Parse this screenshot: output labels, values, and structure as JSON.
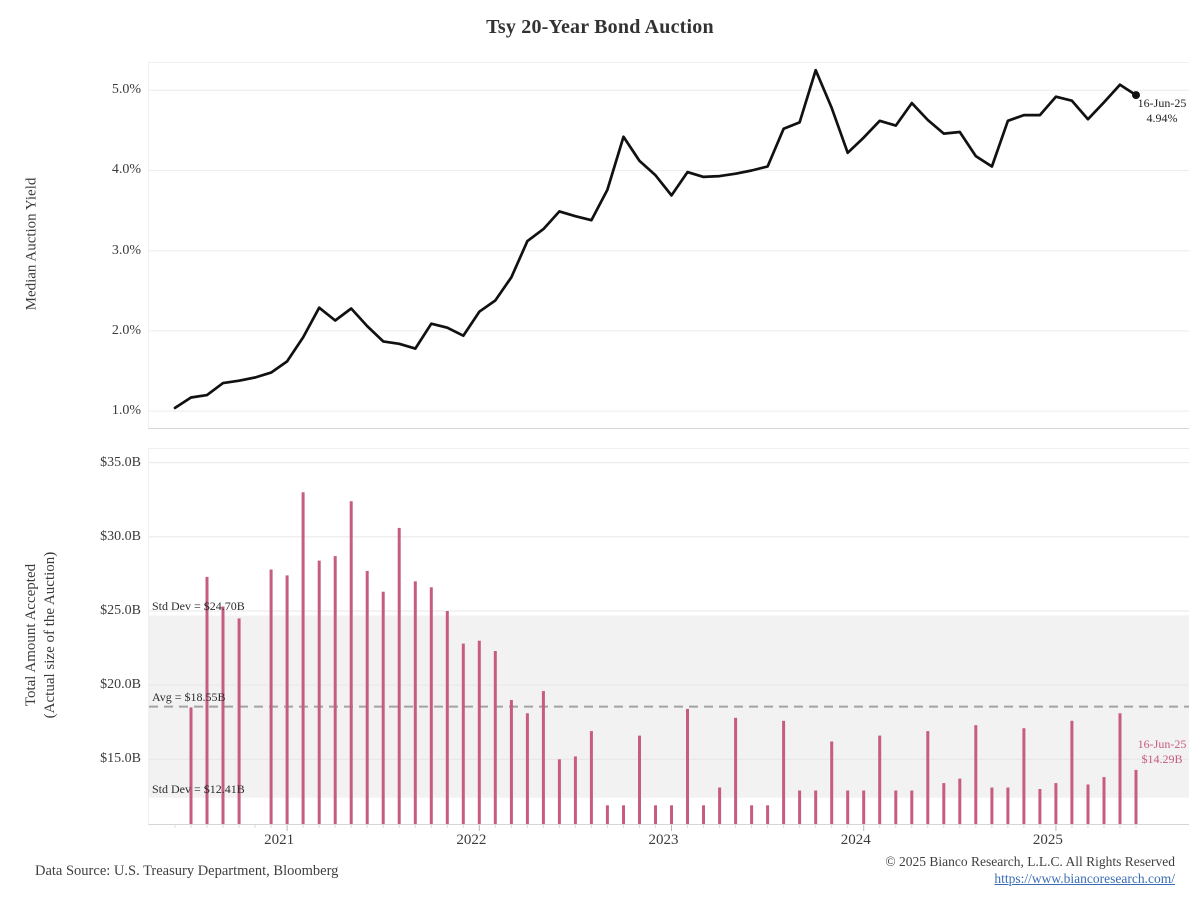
{
  "title": "Tsy 20-Year Bond Auction",
  "colors": {
    "line": "#111111",
    "bar": "#c65c80",
    "band": "#f2f2f2",
    "avg_dash": "#a3a3a3",
    "grid": "#ececec",
    "axis": "#d6d6d6",
    "annotation_pink": "#c65c80",
    "link_blue": "#3a6cb4"
  },
  "top_chart": {
    "ylabel": "Median Auction Yield",
    "ytick_labels": [
      "5.0%",
      "4.0%",
      "3.0%",
      "2.0%",
      "1.0%"
    ],
    "ytick_values": [
      5.0,
      4.0,
      3.0,
      2.0,
      1.0
    ],
    "end_annotation": {
      "date": "16-Jun-25",
      "value": "4.94%"
    }
  },
  "bottom_chart": {
    "ylabel_line1": "Total Amount Accepted",
    "ylabel_line2": "(Actual size of the Auction)",
    "ytick_labels": [
      "$35.0B",
      "$30.0B",
      "$25.0B",
      "$20.0B",
      "$15.0B"
    ],
    "ytick_values": [
      35.0,
      30.0,
      25.0,
      20.0,
      15.0
    ],
    "std_upper_label": "Std Dev = $24.70B",
    "avg_label": "Avg = $18.55B",
    "std_lower_label": "Std Dev = $12.41B",
    "end_annotation": {
      "date": "16-Jun-25",
      "value": "$14.29B"
    }
  },
  "x_axis": {
    "year_labels": [
      "2021",
      "2022",
      "2023",
      "2024",
      "2025"
    ]
  },
  "footer": {
    "source": "Data Source: U.S. Treasury Department, Bloomberg",
    "copyright": "© 2025 Bianco Research, L.L.C. All Rights Reserved",
    "link": "https://www.biancoresearch.com/"
  },
  "chart_data": [
    {
      "type": "line",
      "title": "Tsy 20-Year Bond Auction — Median Auction Yield",
      "ylabel": "Median Auction Yield",
      "unit": "%",
      "ylim": [
        0.79,
        5.34
      ],
      "grid": "horizontal",
      "categories": [
        "Jun-20",
        "Jul-20",
        "Aug-20",
        "Sep-20",
        "Oct-20",
        "Nov-20",
        "Dec-20",
        "Jan-21",
        "Feb-21",
        "Mar-21",
        "Apr-21",
        "May-21",
        "Jun-21",
        "Jul-21",
        "Aug-21",
        "Sep-21",
        "Oct-21",
        "Nov-21",
        "Dec-21",
        "Jan-22",
        "Feb-22",
        "Mar-22",
        "Apr-22",
        "May-22",
        "Jun-22",
        "Jul-22",
        "Aug-22",
        "Sep-22",
        "Oct-22",
        "Nov-22",
        "Dec-22",
        "Jan-23",
        "Feb-23",
        "Mar-23",
        "Apr-23",
        "May-23",
        "Jun-23",
        "Jul-23",
        "Aug-23",
        "Sep-23",
        "Oct-23",
        "Nov-23",
        "Dec-23",
        "Jan-24",
        "Feb-24",
        "Mar-24",
        "Apr-24",
        "May-24",
        "Jun-24",
        "Jul-24",
        "Aug-24",
        "Sep-24",
        "Oct-24",
        "Nov-24",
        "Dec-24",
        "Jan-25",
        "Feb-25",
        "Mar-25",
        "Apr-25",
        "May-25",
        "Jun-25"
      ],
      "values": [
        1.04,
        1.17,
        1.2,
        1.35,
        1.38,
        1.42,
        1.48,
        1.62,
        1.92,
        2.29,
        2.13,
        2.28,
        2.06,
        1.87,
        1.84,
        1.78,
        2.09,
        2.04,
        1.94,
        2.24,
        2.38,
        2.67,
        3.12,
        3.27,
        3.49,
        3.43,
        3.38,
        3.76,
        4.42,
        4.12,
        3.94,
        3.69,
        3.98,
        3.92,
        3.93,
        3.96,
        4.0,
        4.05,
        4.52,
        4.6,
        5.25,
        4.78,
        4.22,
        4.41,
        4.62,
        4.56,
        4.84,
        4.63,
        4.46,
        4.48,
        4.18,
        4.05,
        4.62,
        4.69,
        4.69,
        4.92,
        4.87,
        4.64,
        4.85,
        5.07,
        4.94
      ],
      "last_point": {
        "date": "16-Jun-25",
        "value": 4.94
      }
    },
    {
      "type": "bar",
      "title": "Total Amount Accepted (Actual size of the Auction)",
      "ylabel": "Total Amount Accepted (Actual size of the Auction)",
      "unit": "$B",
      "ylim": [
        10.64,
        35.92
      ],
      "grid": "horizontal",
      "avg": 18.55,
      "std_dev_upper": 24.7,
      "std_dev_lower": 12.41,
      "categories": [
        "Jun-20",
        "Jul-20",
        "Aug-20",
        "Sep-20",
        "Oct-20",
        "Nov-20",
        "Dec-20",
        "Jan-21",
        "Feb-21",
        "Mar-21",
        "Apr-21",
        "May-21",
        "Jun-21",
        "Jul-21",
        "Aug-21",
        "Sep-21",
        "Oct-21",
        "Nov-21",
        "Dec-21",
        "Jan-22",
        "Feb-22",
        "Mar-22",
        "Apr-22",
        "May-22",
        "Jun-22",
        "Jul-22",
        "Aug-22",
        "Sep-22",
        "Oct-22",
        "Nov-22",
        "Dec-22",
        "Jan-23",
        "Feb-23",
        "Mar-23",
        "Apr-23",
        "May-23",
        "Jun-23",
        "Jul-23",
        "Aug-23",
        "Sep-23",
        "Oct-23",
        "Nov-23",
        "Dec-23",
        "Jan-24",
        "Feb-24",
        "Mar-24",
        "Apr-24",
        "May-24",
        "Jun-24",
        "Jul-24",
        "Aug-24",
        "Sep-24",
        "Oct-24",
        "Nov-24",
        "Dec-24",
        "Jan-25",
        "Feb-25",
        "Mar-25",
        "Apr-25",
        "May-25",
        "Jun-25"
      ],
      "values": [
        null,
        18.5,
        27.3,
        25.3,
        24.5,
        null,
        27.8,
        27.4,
        33.0,
        28.4,
        28.7,
        32.4,
        27.7,
        26.3,
        30.6,
        27.0,
        26.6,
        25.0,
        22.8,
        23.0,
        22.3,
        19.0,
        18.1,
        19.6,
        15.0,
        15.2,
        16.9,
        11.9,
        11.9,
        16.6,
        11.9,
        11.9,
        18.4,
        11.9,
        13.1,
        17.8,
        11.9,
        11.9,
        17.6,
        12.9,
        12.9,
        16.2,
        12.9,
        12.9,
        16.6,
        12.9,
        12.9,
        16.9,
        13.4,
        13.7,
        17.3,
        13.1,
        13.1,
        17.1,
        13.0,
        13.4,
        17.6,
        13.3,
        13.8,
        18.1,
        14.29
      ],
      "last_point": {
        "date": "16-Jun-25",
        "value": 14.29
      }
    }
  ]
}
